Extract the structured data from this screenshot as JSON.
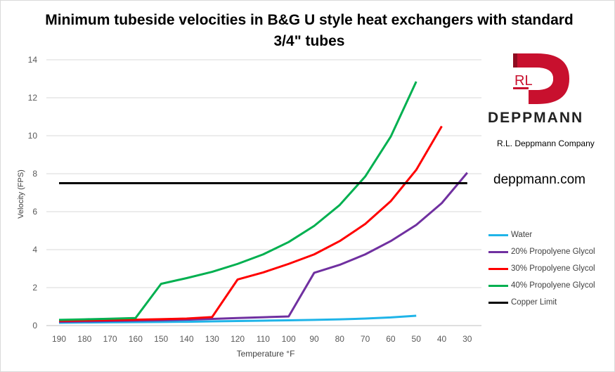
{
  "logo": {
    "mark_text": "RL",
    "brand": "DEPPMANN",
    "company": "R.L. Deppmann Company",
    "website": "deppmann.com",
    "colors": {
      "mark": "#c8102e",
      "mark_dark": "#8f0c20",
      "text": "#222222"
    }
  },
  "chart_data": {
    "type": "line",
    "title": "Minimum tubeside velocities in B&G U style heat exchangers with standard 3/4\" tubes",
    "xlabel": "Temperature °F",
    "ylabel": "Velocity (FPS)",
    "categories": [
      "190",
      "180",
      "170",
      "160",
      "150",
      "140",
      "130",
      "120",
      "110",
      "100",
      "90",
      "80",
      "70",
      "60",
      "50",
      "40",
      "30"
    ],
    "ylim": [
      0,
      14
    ],
    "yticks": [
      "0",
      "2",
      "4",
      "6",
      "8",
      "10",
      "12",
      "14"
    ],
    "grid": "horizontal",
    "legend_position": "right",
    "series": [
      {
        "name": "Water",
        "color": "#1fb4e8",
        "values": [
          0.15,
          0.16,
          0.17,
          0.18,
          0.19,
          0.2,
          0.22,
          0.24,
          0.26,
          0.28,
          0.3,
          0.33,
          0.37,
          0.43,
          0.52,
          null,
          null
        ]
      },
      {
        "name": "20% Propolyene Glycol",
        "color": "#7030a0",
        "values": [
          0.2,
          0.22,
          0.24,
          0.26,
          0.28,
          0.31,
          0.35,
          0.4,
          0.44,
          0.48,
          2.78,
          3.2,
          3.75,
          4.45,
          5.3,
          6.45,
          8.05
        ]
      },
      {
        "name": "30% Propolyene Glycol",
        "color": "#ff0000",
        "values": [
          0.25,
          0.27,
          0.29,
          0.31,
          0.34,
          0.37,
          0.45,
          2.43,
          2.8,
          3.25,
          3.75,
          4.45,
          5.35,
          6.55,
          8.2,
          10.5,
          null
        ]
      },
      {
        "name": "40% Propolyene Glycol",
        "color": "#00b050",
        "values": [
          0.3,
          0.33,
          0.36,
          0.4,
          2.2,
          2.5,
          2.83,
          3.25,
          3.75,
          4.4,
          5.25,
          6.35,
          7.85,
          9.95,
          12.85,
          null,
          null
        ]
      },
      {
        "name": "Copper Limit",
        "color": "#000000",
        "values": [
          7.5,
          7.5,
          7.5,
          7.5,
          7.5,
          7.5,
          7.5,
          7.5,
          7.5,
          7.5,
          7.5,
          7.5,
          7.5,
          7.5,
          7.5,
          7.5,
          7.5
        ]
      }
    ]
  }
}
